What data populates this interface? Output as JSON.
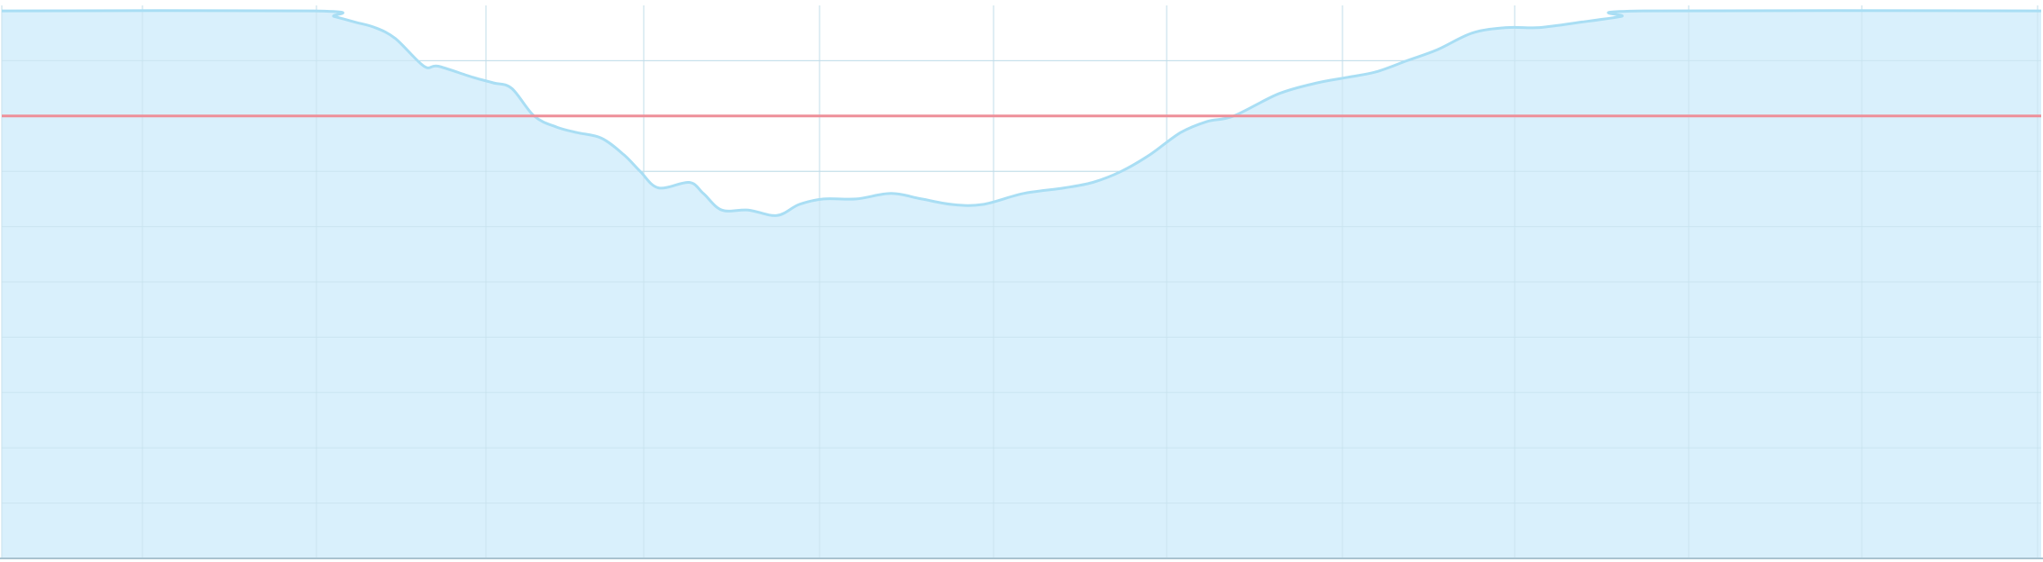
{
  "chart_data": {
    "type": "area",
    "title": "",
    "xlabel": "",
    "ylabel": "",
    "xlim": [
      0,
      100
    ],
    "ylim": [
      0,
      100
    ],
    "grid": true,
    "legend": "none",
    "x": [
      0,
      15.3,
      16.3,
      17.3,
      18.3,
      19.3,
      20.7,
      21.4,
      23.1,
      24.1,
      25.0,
      26.1,
      27.2,
      28.2,
      29.4,
      30.5,
      31.3,
      32.2,
      33.7,
      34.4,
      35.3,
      36.6,
      38.0,
      39.1,
      40.3,
      41.9,
      43.6,
      45.1,
      46.6,
      48.1,
      50.1,
      52.1,
      53.5,
      54.9,
      56.3,
      57.8,
      59.1,
      60.4,
      62.6,
      64.5,
      66.0,
      67.4,
      68.9,
      70.4,
      72.1,
      73.8,
      75.4,
      77.5,
      79.4,
      80.5,
      100
    ],
    "values": [
      99,
      99,
      98,
      97,
      96,
      94,
      89,
      89,
      87,
      86,
      85,
      80,
      78,
      77,
      76,
      73,
      70,
      67,
      68,
      66,
      63,
      63,
      62,
      64,
      65,
      65,
      66,
      65,
      64,
      64,
      66,
      67,
      68,
      70,
      73,
      77,
      79,
      80,
      84,
      86,
      87,
      88,
      90,
      92,
      95,
      96,
      96,
      97,
      98,
      99,
      99
    ],
    "reference_line": {
      "y": 80
    },
    "colors": {
      "area_fill": "#d9f0fc",
      "area_line": "#a9def4",
      "grid": "#c2dde9",
      "reference_line": "#ee8f99",
      "baseline": "#a9c3d0"
    }
  }
}
